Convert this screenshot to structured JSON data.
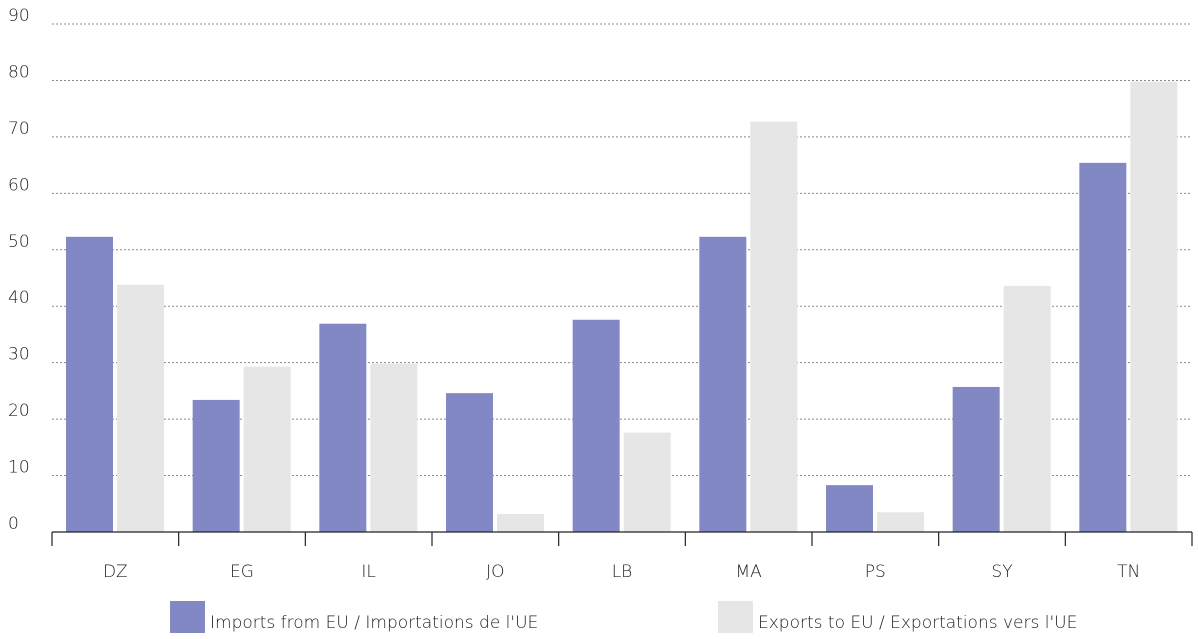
{
  "chart_data": {
    "type": "bar",
    "categories": [
      "DZ",
      "EG",
      "IL",
      "JO",
      "LB",
      "MA",
      "PS",
      "SY",
      "TN"
    ],
    "series": [
      {
        "name": "Imports from EU / Importations de l'UE",
        "color": "#8288c4",
        "values": [
          52.3,
          23.4,
          36.9,
          24.6,
          37.6,
          52.3,
          8.3,
          25.7,
          65.4
        ]
      },
      {
        "name": "Exports to EU / Exportations vers l'UE",
        "color": "#e6e6e6",
        "values": [
          43.8,
          29.3,
          29.8,
          3.2,
          17.6,
          72.7,
          3.5,
          43.6,
          79.8
        ]
      }
    ],
    "ylim": [
      0,
      90
    ],
    "yticks": [
      0,
      10,
      20,
      30,
      40,
      50,
      60,
      70,
      80,
      90
    ],
    "grid": true,
    "legend": "bottom"
  }
}
